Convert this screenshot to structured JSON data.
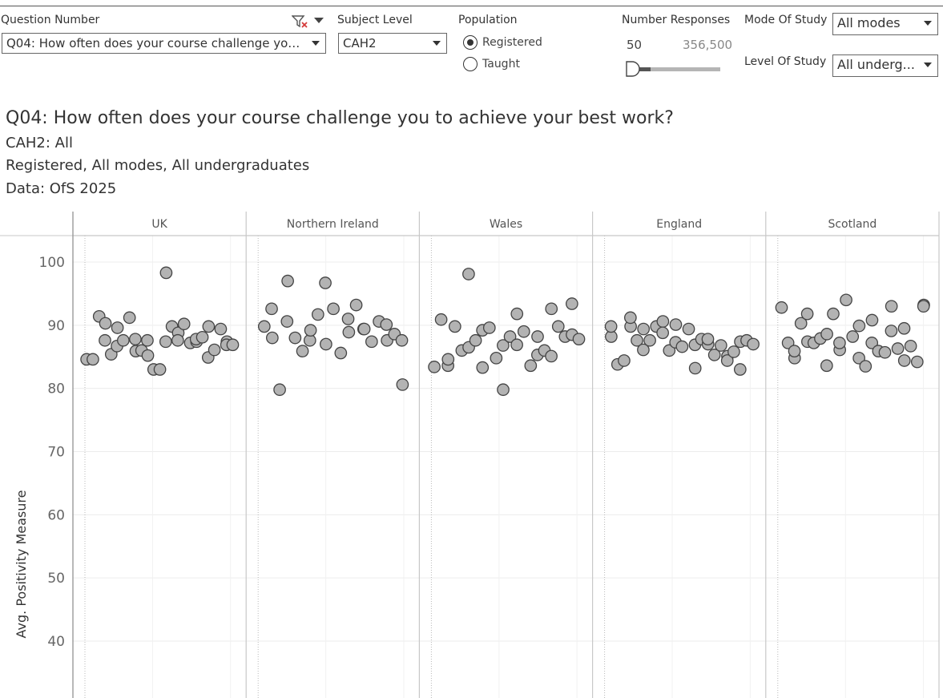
{
  "filters": {
    "question_number": {
      "label": "Question Number",
      "value": "Q04: How often does your course challenge you to achieve your best work?"
    },
    "subject_level": {
      "label": "Subject Level",
      "value": "CAH2"
    },
    "population": {
      "label": "Population",
      "options": [
        "Registered",
        "Taught"
      ],
      "selected": "Registered"
    },
    "number_responses": {
      "label": "Number Responses",
      "min_label": "50",
      "max_label": "356,500"
    },
    "mode_of_study": {
      "label": "Mode Of Study",
      "value": "All modes"
    },
    "level_of_study": {
      "label": "Level Of Study",
      "value": "All underg..."
    }
  },
  "header": {
    "title": "Q04: How often does your course challenge you to achieve your best work?",
    "subtitle1": "CAH2: All",
    "subtitle2": "Registered, All modes, All undergraduates",
    "subtitle3": "Data: OfS 2025"
  },
  "colors": {
    "marker_fill": "#b3b3b3",
    "marker_stroke": "#444444",
    "grid": "#ececec",
    "divider": "#c8c8c8"
  },
  "icons": {
    "clear_filter": "filter-clear-icon",
    "menu": "chevron-down-icon"
  },
  "chart_data": {
    "type": "scatter",
    "ylabel": "Avg. Positivity Measure",
    "y_ticks": [
      40,
      50,
      60,
      70,
      80,
      90,
      100
    ],
    "ylim": [
      31,
      104
    ],
    "grid": true,
    "panels": [
      {
        "name": "UK",
        "points": [
          84.6,
          84.6,
          91.4,
          90.3,
          87.6,
          85.4,
          89.6,
          86.7,
          87.6,
          91.2,
          85.9,
          87.8,
          86.0,
          85.2,
          87.6,
          83.0,
          83.0,
          98.3,
          87.4,
          89.8,
          88.8,
          87.6,
          90.2,
          87.2,
          87.4,
          87.8,
          88.1,
          89.8,
          84.9,
          86.1,
          89.4,
          87.4,
          86.9,
          86.9
        ]
      },
      {
        "name": "Northern Ireland",
        "points": [
          89.8,
          92.6,
          88.0,
          79.8,
          90.6,
          97.0,
          88.0,
          85.9,
          87.6,
          89.2,
          91.7,
          96.7,
          87.0,
          92.6,
          85.6,
          91.0,
          88.9,
          93.2,
          89.4,
          89.4,
          87.4,
          90.6,
          90.1,
          87.6,
          88.6,
          87.6,
          80.6
        ]
      },
      {
        "name": "Wales",
        "points": [
          83.4,
          90.9,
          83.6,
          84.6,
          89.8,
          86.0,
          98.1,
          86.5,
          87.6,
          89.2,
          83.3,
          89.6,
          84.8,
          86.8,
          79.8,
          88.2,
          86.9,
          91.8,
          89.0,
          83.6,
          85.3,
          88.2,
          86.0,
          85.1,
          92.6,
          89.8,
          88.2,
          93.4,
          88.5,
          87.8
        ]
      },
      {
        "name": "England",
        "points": [
          88.2,
          89.8,
          83.8,
          84.4,
          89.8,
          91.2,
          87.6,
          89.4,
          86.1,
          87.6,
          89.8,
          90.6,
          88.8,
          86.0,
          90.1,
          87.3,
          86.6,
          89.4,
          83.2,
          86.9,
          87.8,
          87.0,
          87.8,
          85.3,
          86.8,
          85.1,
          84.4,
          85.8,
          87.4,
          83.0,
          87.6,
          87.0
        ]
      },
      {
        "name": "Scotland",
        "points": [
          92.8,
          87.2,
          84.8,
          85.9,
          90.3,
          87.4,
          91.8,
          87.2,
          87.9,
          88.6,
          83.6,
          91.8,
          86.1,
          87.2,
          94.0,
          88.2,
          89.9,
          84.8,
          83.5,
          90.8,
          87.2,
          85.9,
          85.7,
          93.0,
          89.1,
          86.3,
          84.4,
          89.5,
          86.7,
          84.2,
          93.2,
          93.0
        ]
      }
    ]
  }
}
